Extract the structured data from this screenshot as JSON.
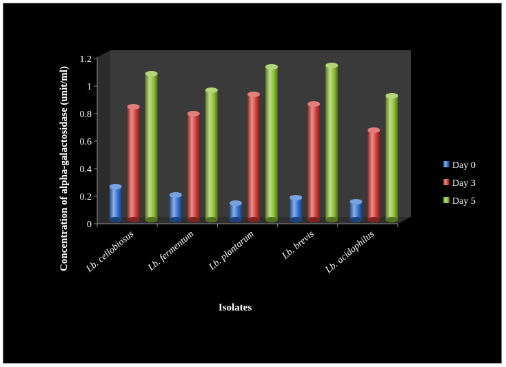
{
  "chart_data": {
    "type": "bar",
    "xlabel": "Isolates",
    "ylabel": "Concentration of alpha-galactosidase (unit/ml)",
    "categories": [
      "Lb. cellobiosus",
      "Lb. fermentum",
      "Lb. plantarum",
      "Lb. brevis",
      "Lb. acidophilus"
    ],
    "series": [
      {
        "name": "Day 0",
        "color": "#2f6fd0",
        "values": [
          0.25,
          0.19,
          0.13,
          0.17,
          0.14
        ]
      },
      {
        "name": "Day 3",
        "color": "#d23a36",
        "values": [
          0.83,
          0.78,
          0.92,
          0.85,
          0.66
        ]
      },
      {
        "name": "Day 5",
        "color": "#8cbf32",
        "values": [
          1.07,
          0.95,
          1.12,
          1.13,
          0.91
        ]
      }
    ],
    "ylim": [
      0,
      1.2
    ],
    "yticks": [
      "0",
      "0.2",
      "0.4",
      "0.6",
      "0.8",
      "1",
      "1.2"
    ],
    "legend_position": "right",
    "grid": false,
    "bar_style": "3d-cylinder"
  }
}
